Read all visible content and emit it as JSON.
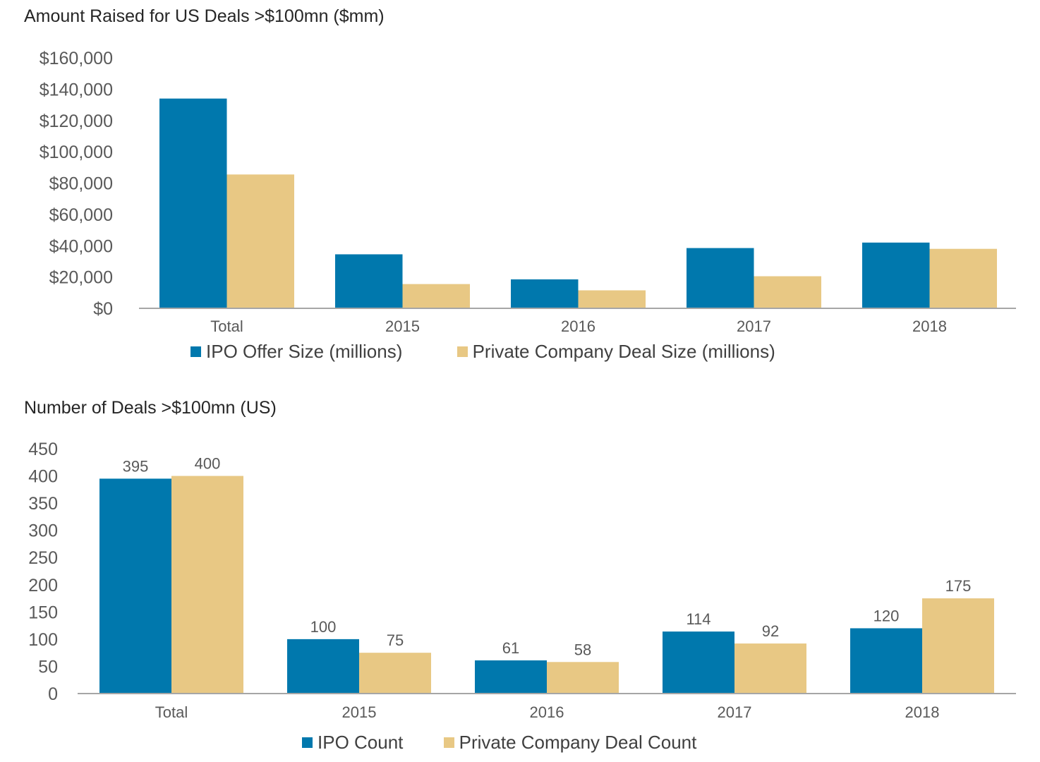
{
  "colors": {
    "ipo": "#0078AD",
    "private": "#E8C884",
    "axis": "#A6A6A6",
    "text": "#595959"
  },
  "chart_data": [
    {
      "type": "bar",
      "title": "Amount Raised for US Deals >$100mn ($mm)",
      "categories": [
        "Total",
        "2015",
        "2016",
        "2017",
        "2018"
      ],
      "series": [
        {
          "name": "IPO Offer Size (millions)",
          "values": [
            134000,
            34500,
            18500,
            38500,
            42000
          ]
        },
        {
          "name": "Private Company Deal Size (millions)",
          "values": [
            85500,
            15500,
            11500,
            20500,
            38000
          ]
        }
      ],
      "ylim": [
        0,
        160000
      ],
      "yticks": [
        "$0",
        "$20,000",
        "$40,000",
        "$60,000",
        "$80,000",
        "$100,000",
        "$120,000",
        "$140,000",
        "$160,000"
      ],
      "xlabel": "",
      "ylabel": "",
      "grid": false,
      "legend": "bottom"
    },
    {
      "type": "bar",
      "title": "Number of Deals >$100mn (US)",
      "categories": [
        "Total",
        "2015",
        "2016",
        "2017",
        "2018"
      ],
      "series": [
        {
          "name": "IPO Count",
          "values": [
            395,
            100,
            61,
            114,
            120
          ],
          "labels": [
            "395",
            "100",
            "61",
            "114",
            "120"
          ]
        },
        {
          "name": "Private Company Deal Count",
          "values": [
            400,
            75,
            58,
            92,
            175
          ],
          "labels": [
            "400",
            "75",
            "58",
            "92",
            "175"
          ]
        }
      ],
      "ylim": [
        0,
        450
      ],
      "yticks": [
        "0",
        "50",
        "100",
        "150",
        "200",
        "250",
        "300",
        "350",
        "400",
        "450"
      ],
      "xlabel": "",
      "ylabel": "",
      "grid": false,
      "legend": "bottom"
    }
  ]
}
